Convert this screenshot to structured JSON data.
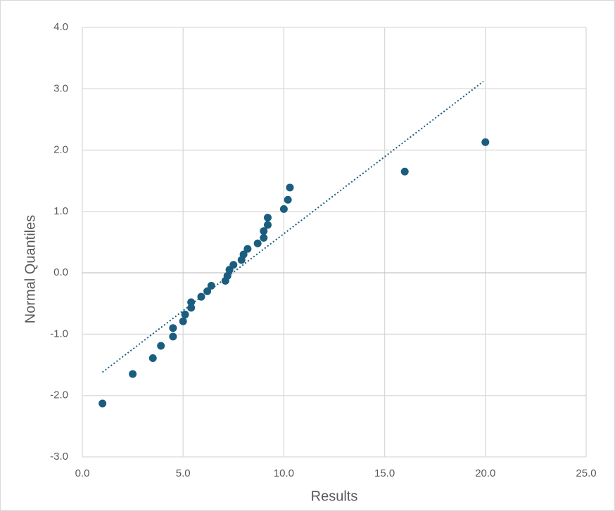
{
  "chart_data": {
    "type": "scatter",
    "x_label": "Results",
    "y_label": "Normal Quantiles",
    "color": "#1b5d7e",
    "grid": true,
    "xlim": [
      0,
      25
    ],
    "ylim": [
      -3,
      4
    ],
    "xticks": [
      {
        "value": 0,
        "label": "0.0"
      },
      {
        "value": 5,
        "label": "5.0"
      },
      {
        "value": 10,
        "label": "10.0"
      },
      {
        "value": 15,
        "label": "15.0"
      },
      {
        "value": 20,
        "label": "20.0"
      },
      {
        "value": 25,
        "label": "25.0"
      }
    ],
    "yticks": [
      {
        "value": -3,
        "label": "-3.0"
      },
      {
        "value": -2,
        "label": "-2.0"
      },
      {
        "value": -1,
        "label": "-1.0"
      },
      {
        "value": 0,
        "label": "0.0"
      },
      {
        "value": 1,
        "label": "1.0"
      },
      {
        "value": 2,
        "label": "2.0"
      },
      {
        "value": 3,
        "label": "3.0"
      },
      {
        "value": 4,
        "label": "4.0"
      }
    ],
    "x": [
      1.0,
      2.5,
      3.5,
      3.9,
      4.5,
      4.5,
      5.0,
      5.1,
      5.4,
      5.4,
      5.9,
      6.2,
      6.4,
      7.1,
      7.2,
      7.3,
      7.5,
      7.9,
      8.0,
      8.2,
      8.7,
      9.0,
      9.0,
      9.2,
      9.2,
      10.0,
      10.2,
      10.3,
      16.0,
      20.0
    ],
    "values": [
      -2.13,
      -1.65,
      -1.39,
      -1.19,
      -1.04,
      -0.9,
      -0.79,
      -0.68,
      -0.57,
      -0.48,
      -0.39,
      -0.3,
      -0.21,
      -0.13,
      -0.05,
      0.05,
      0.13,
      0.21,
      0.3,
      0.39,
      0.48,
      0.57,
      0.68,
      0.78,
      0.9,
      1.04,
      1.19,
      1.39,
      1.65,
      2.13
    ],
    "trendline": {
      "x": [
        1.0,
        19.9
      ],
      "values": [
        -1.62,
        3.12
      ],
      "color": "#1b5d7e"
    }
  }
}
